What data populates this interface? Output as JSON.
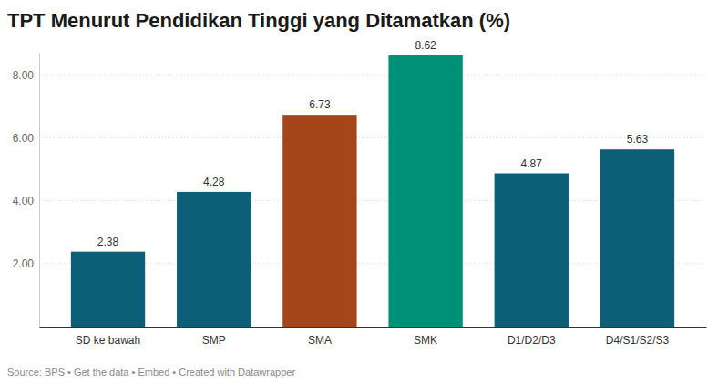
{
  "chart_data": {
    "type": "bar",
    "title": "TPT Menurut Pendidikan Tinggi yang Ditamatkan (%)",
    "categories": [
      "SD ke bawah",
      "SMP",
      "SMA",
      "SMK",
      "D1/D2/D3",
      "D4/S1/S2/S3"
    ],
    "values": [
      2.38,
      4.28,
      6.73,
      8.62,
      4.87,
      5.63
    ],
    "colors": [
      "#0d5f78",
      "#0d5f78",
      "#a5461a",
      "#008f77",
      "#0d5f78",
      "#0d5f78"
    ],
    "ylim": [
      0,
      8.7
    ],
    "yticks": [
      {
        "value": 2,
        "label": "2.00"
      },
      {
        "value": 4,
        "label": "4.00"
      },
      {
        "value": 6,
        "label": "6.00"
      },
      {
        "value": 8,
        "label": "8.00"
      }
    ],
    "grid": true,
    "data_labels": true,
    "source": "Source: BPS • Get the data • Embed • Created with Datawrapper"
  }
}
